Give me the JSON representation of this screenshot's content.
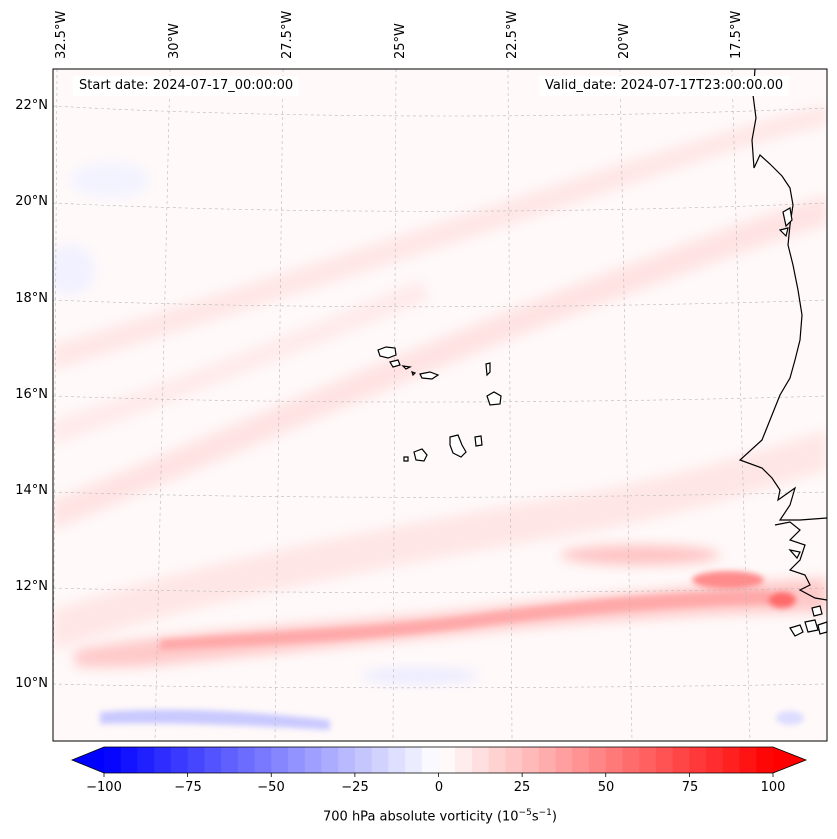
{
  "map": {
    "start_date": "Start date: 2024-07-17_00:00:00",
    "valid_date": "Valid_date: 2024-07-17T23:00:00.00",
    "longitude_labels": [
      "32.5°W",
      "30°W",
      "27.5°W",
      "25°W",
      "22.5°W",
      "20°W",
      "17.5°W"
    ],
    "latitude_labels": [
      "22°N",
      "20°N",
      "18°N",
      "16°N",
      "14°N",
      "12°N",
      "10°N"
    ],
    "features": [
      "Cape Verde islands",
      "West African coastline",
      "vorticity band near 11–12°N"
    ]
  },
  "colorbar": {
    "label_prefix": "700 hPa absolute vorticity (10",
    "label_exp1": "−5",
    "label_mid": "s",
    "label_exp2": "−1",
    "label_suffix": ")",
    "ticks": [
      "−100",
      "−75",
      "−50",
      "−25",
      "0",
      "25",
      "50",
      "75",
      "100"
    ],
    "min": -100,
    "max": 100,
    "colors": {
      "negative": "#0000ff",
      "neutral": "#ffffff",
      "positive": "#ff0000"
    }
  }
}
